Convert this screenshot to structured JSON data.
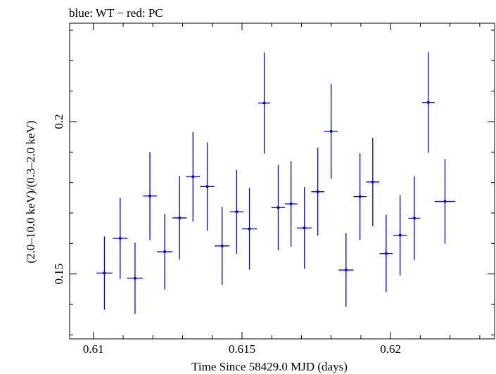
{
  "chart_data": {
    "type": "scatter",
    "title": "blue: WT − red: PC",
    "xlabel": "Time Since 58429.0 MJD (days)",
    "ylabel": "(2.0–10.0 keV)/(0.3–2.0 keV)",
    "xlim": [
      0.6092,
      0.6235
    ],
    "ylim": [
      0.1287,
      0.2323
    ],
    "x_ticks": [
      {
        "value": 0.61,
        "label": "0.61"
      },
      {
        "value": 0.615,
        "label": "0.615"
      },
      {
        "value": 0.62,
        "label": "0.62"
      }
    ],
    "y_ticks": [
      {
        "value": 0.15,
        "label": "0.15"
      },
      {
        "value": 0.2,
        "label": "0.2"
      }
    ],
    "x_minor_step": 0.001,
    "y_minor_step": 0.01,
    "grid": false,
    "colors": {
      "WT": "#0000ee",
      "PC": "#ee0000",
      "axes": "#000000"
    },
    "series": [
      {
        "name": "WT",
        "color": "#0000ee",
        "points": [
          {
            "x": 0.61037,
            "xerr": 0.00027,
            "y": 0.1503,
            "yerr": 0.012
          },
          {
            "x": 0.6109,
            "xerr": 0.00025,
            "y": 0.1617,
            "yerr": 0.0133
          },
          {
            "x": 0.6114,
            "xerr": 0.00027,
            "y": 0.1486,
            "yerr": 0.0117
          },
          {
            "x": 0.6119,
            "xerr": 0.00023,
            "y": 0.1756,
            "yerr": 0.0144
          },
          {
            "x": 0.6124,
            "xerr": 0.00026,
            "y": 0.1573,
            "yerr": 0.0124
          },
          {
            "x": 0.6129,
            "xerr": 0.00024,
            "y": 0.1684,
            "yerr": 0.0137
          },
          {
            "x": 0.61335,
            "xerr": 0.00023,
            "y": 0.1819,
            "yerr": 0.0147
          },
          {
            "x": 0.61383,
            "xerr": 0.00024,
            "y": 0.1787,
            "yerr": 0.0145
          },
          {
            "x": 0.61433,
            "xerr": 0.00025,
            "y": 0.1592,
            "yerr": 0.0128
          },
          {
            "x": 0.61482,
            "xerr": 0.00023,
            "y": 0.1704,
            "yerr": 0.0138
          },
          {
            "x": 0.61525,
            "xerr": 0.00025,
            "y": 0.1648,
            "yerr": 0.0134
          },
          {
            "x": 0.61575,
            "xerr": 0.0002,
            "y": 0.2061,
            "yerr": 0.0166
          },
          {
            "x": 0.61622,
            "xerr": 0.00023,
            "y": 0.1718,
            "yerr": 0.014
          },
          {
            "x": 0.61665,
            "xerr": 0.00021,
            "y": 0.173,
            "yerr": 0.014
          },
          {
            "x": 0.6171,
            "xerr": 0.00025,
            "y": 0.1651,
            "yerr": 0.0134
          },
          {
            "x": 0.61755,
            "xerr": 0.00022,
            "y": 0.177,
            "yerr": 0.0144
          },
          {
            "x": 0.618,
            "xerr": 0.00023,
            "y": 0.1968,
            "yerr": 0.0156
          },
          {
            "x": 0.6185,
            "xerr": 0.00025,
            "y": 0.1513,
            "yerr": 0.0121
          },
          {
            "x": 0.61897,
            "xerr": 0.00022,
            "y": 0.1754,
            "yerr": 0.0142
          },
          {
            "x": 0.6194,
            "xerr": 0.00022,
            "y": 0.1802,
            "yerr": 0.0145
          },
          {
            "x": 0.61985,
            "xerr": 0.00022,
            "y": 0.1567,
            "yerr": 0.0127
          },
          {
            "x": 0.62032,
            "xerr": 0.00023,
            "y": 0.1627,
            "yerr": 0.0132
          },
          {
            "x": 0.6208,
            "xerr": 0.0002,
            "y": 0.1683,
            "yerr": 0.0137
          },
          {
            "x": 0.62127,
            "xerr": 0.00021,
            "y": 0.2063,
            "yerr": 0.0165
          },
          {
            "x": 0.62183,
            "xerr": 0.00035,
            "y": 0.1738,
            "yerr": 0.0139
          }
        ]
      }
    ]
  }
}
